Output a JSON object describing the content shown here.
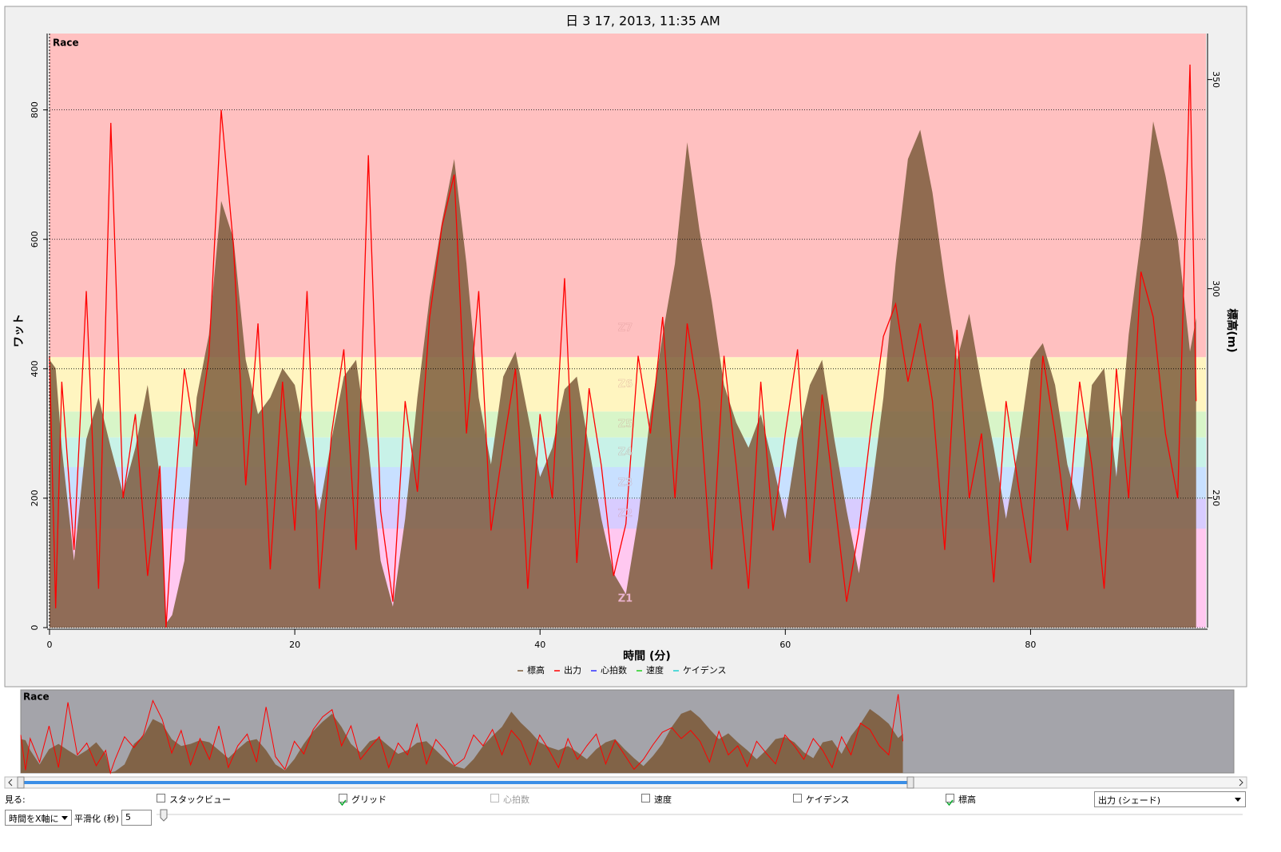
{
  "chart_data": {
    "type": "line",
    "title": "日 3 17, 2013, 11:35 AM",
    "annotation": "Race",
    "x_label": "時間 (分)",
    "y_label": "ワット",
    "y2_label": "標高(m)",
    "x": [
      0,
      0.5,
      1,
      2,
      3,
      4,
      5,
      6,
      7,
      8,
      9,
      9.5,
      10,
      11,
      12,
      13,
      14,
      15,
      16,
      17,
      18,
      19,
      20,
      21,
      22,
      23,
      24,
      25,
      26,
      27,
      28,
      29,
      30,
      31,
      32,
      33,
      34,
      35,
      36,
      37,
      38,
      39,
      40,
      41,
      42,
      43,
      44,
      45,
      46,
      47,
      48,
      49,
      50,
      51,
      52,
      53,
      54,
      55,
      56,
      57,
      58,
      59,
      60,
      61,
      62,
      63,
      64,
      65,
      66,
      67,
      68,
      69,
      70,
      71,
      72,
      73,
      74,
      75,
      76,
      77,
      78,
      79,
      80,
      81,
      82,
      83,
      84,
      85,
      86,
      87,
      88,
      89,
      90,
      91,
      92,
      93,
      93.5
    ],
    "xlim": [
      0,
      94.3
    ],
    "xticks": [
      0,
      20,
      40,
      60,
      80
    ],
    "ylim": [
      0,
      918
    ],
    "yticks": [
      0,
      200,
      400,
      600,
      800
    ],
    "y2lim": [
      219,
      361
    ],
    "y2ticks": [
      250,
      300,
      350
    ],
    "grid": true,
    "zones": [
      {
        "name": "Z1",
        "min": 0,
        "max": 153,
        "color": "#ffc8f0"
      },
      {
        "name": "Z2",
        "min": 153,
        "max": 199,
        "color": "#d8ccff"
      },
      {
        "name": "Z3",
        "min": 199,
        "max": 248,
        "color": "#c8e0ff"
      },
      {
        "name": "Z4",
        "min": 248,
        "max": 294,
        "color": "#c8f2e8"
      },
      {
        "name": "Z5",
        "min": 294,
        "max": 334,
        "color": "#d8f5c8"
      },
      {
        "name": "Z6",
        "min": 334,
        "max": 418,
        "color": "#fff5c0"
      },
      {
        "name": "Z7",
        "min": 418,
        "max": 918,
        "color": "#ffc0c0"
      }
    ],
    "series": [
      {
        "name": "標高",
        "color": "#7d5c3c",
        "axis": "y2",
        "values": [
          283,
          281,
          262,
          235,
          264,
          274,
          262,
          251,
          262,
          277,
          255,
          220,
          222,
          235,
          274,
          289,
          321,
          312,
          283,
          270,
          274,
          281,
          277,
          262,
          247,
          264,
          279,
          283,
          262,
          235,
          224,
          245,
          274,
          298,
          316,
          331,
          306,
          274,
          258,
          279,
          285,
          270,
          255,
          262,
          276,
          279,
          262,
          245,
          232,
          227,
          245,
          270,
          289,
          306,
          335,
          314,
          297,
          277,
          268,
          262,
          270,
          258,
          245,
          264,
          277,
          283,
          264,
          247,
          232,
          251,
          274,
          306,
          331,
          338,
          323,
          302,
          283,
          294,
          277,
          262,
          245,
          262,
          283,
          287,
          277,
          258,
          247,
          277,
          281,
          255,
          289,
          312,
          340,
          327,
          312,
          285,
          293
        ]
      },
      {
        "name": "出力",
        "color": "#ff0000",
        "values": [
          420,
          30,
          380,
          120,
          520,
          60,
          780,
          200,
          330,
          80,
          250,
          0,
          150,
          400,
          280,
          420,
          800,
          590,
          220,
          470,
          90,
          380,
          150,
          520,
          60,
          300,
          430,
          120,
          730,
          180,
          40,
          350,
          210,
          480,
          620,
          700,
          300,
          520,
          150,
          280,
          400,
          60,
          330,
          200,
          540,
          100,
          370,
          250,
          80,
          160,
          420,
          300,
          480,
          200,
          470,
          350,
          90,
          420,
          250,
          60,
          380,
          150,
          300,
          430,
          100,
          360,
          200,
          40,
          150,
          310,
          450,
          500,
          380,
          470,
          350,
          120,
          460,
          200,
          300,
          70,
          350,
          220,
          100,
          420,
          300,
          150,
          380,
          250,
          60,
          400,
          200,
          550,
          480,
          300,
          200,
          870,
          350
        ]
      }
    ],
    "other_series": [
      {
        "name": "心拍数",
        "color": "#3030ff"
      },
      {
        "name": "速度",
        "color": "#20d020"
      },
      {
        "name": "ケイデンス",
        "color": "#20d0d0"
      }
    ]
  },
  "controls": {
    "view_label": "見る:",
    "checkboxes": [
      {
        "label": "スタックビュー",
        "checked": false,
        "enabled": true
      },
      {
        "label": "グリッド",
        "checked": true,
        "enabled": true
      },
      {
        "label": "心拍数",
        "checked": false,
        "enabled": false
      },
      {
        "label": "速度",
        "checked": false,
        "enabled": true
      },
      {
        "label": "ケイデンス",
        "checked": false,
        "enabled": true
      },
      {
        "label": "標高",
        "checked": true,
        "enabled": true
      }
    ],
    "dropdown": "出力 (シェード)",
    "x_axis_select": "時間をX軸に",
    "smoothing_label": "平滑化 (秒)",
    "smoothing_value": 5
  }
}
